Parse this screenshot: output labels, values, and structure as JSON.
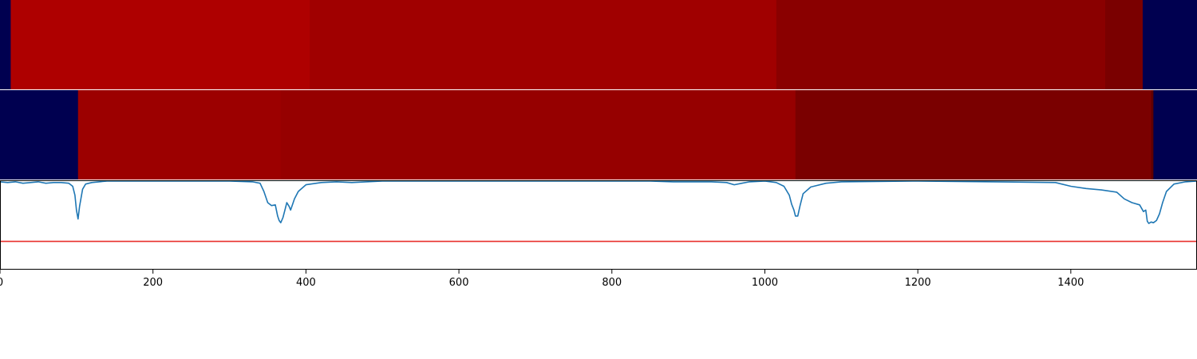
{
  "chart_data": {
    "type": "heatmap",
    "xlim": [
      0,
      1565
    ],
    "x_ticks": [
      0,
      200,
      400,
      600,
      800,
      1000,
      1200,
      1400
    ],
    "x_tick_labels": [
      "0",
      "200",
      "400",
      "600",
      "800",
      "1000",
      "1200",
      "1400"
    ],
    "colors": {
      "background_segment": "#000050",
      "line": "#1f77b4",
      "threshold_line": "#e8302b",
      "axes": "#000000"
    },
    "rows": [
      {
        "segments": [
          {
            "start": 0,
            "end": 14,
            "color": "#000050"
          },
          {
            "start": 14,
            "end": 405,
            "color": "#ae0000"
          },
          {
            "start": 405,
            "end": 1015,
            "color": "#a00000"
          },
          {
            "start": 1015,
            "end": 1445,
            "color": "#8a0000"
          },
          {
            "start": 1445,
            "end": 1494,
            "color": "#7a0000"
          },
          {
            "start": 1494,
            "end": 1565,
            "color": "#000050"
          }
        ]
      },
      {
        "segments": [
          {
            "start": 0,
            "end": 102,
            "color": "#000050"
          },
          {
            "start": 102,
            "end": 367,
            "color": "#9c0000"
          },
          {
            "start": 367,
            "end": 1040,
            "color": "#960000"
          },
          {
            "start": 1040,
            "end": 1505,
            "color": "#7a0000"
          },
          {
            "start": 1505,
            "end": 1508,
            "color": "#600000"
          },
          {
            "start": 1508,
            "end": 1565,
            "color": "#000050"
          }
        ]
      }
    ],
    "line_panel": {
      "ylim": [
        0,
        1.2
      ],
      "threshold": 0.38,
      "series": [
        {
          "x": [
            0,
            10,
            20,
            30,
            40,
            50,
            60,
            70,
            80,
            90,
            95,
            98,
            100,
            102,
            104,
            108,
            112,
            120,
            140,
            180,
            220,
            260,
            300,
            330,
            340,
            345,
            350,
            355,
            360,
            363,
            365,
            367,
            370,
            373,
            375,
            378,
            380,
            385,
            390,
            400,
            420,
            440,
            460,
            500,
            600,
            700,
            800,
            850,
            880,
            900,
            930,
            950,
            960,
            970,
            980,
            1000,
            1015,
            1025,
            1032,
            1035,
            1038,
            1040,
            1043,
            1046,
            1050,
            1060,
            1080,
            1100,
            1200,
            1300,
            1380,
            1400,
            1420,
            1440,
            1460,
            1470,
            1480,
            1490,
            1495,
            1498,
            1500,
            1502,
            1505,
            1508,
            1512,
            1516,
            1520,
            1525,
            1535,
            1550,
            1565
          ],
          "y": [
            1.18,
            1.17,
            1.18,
            1.16,
            1.17,
            1.18,
            1.16,
            1.17,
            1.17,
            1.16,
            1.12,
            1.0,
            0.8,
            0.68,
            0.85,
            1.08,
            1.15,
            1.17,
            1.19,
            1.19,
            1.19,
            1.19,
            1.19,
            1.18,
            1.16,
            1.05,
            0.9,
            0.86,
            0.87,
            0.72,
            0.66,
            0.63,
            0.7,
            0.82,
            0.9,
            0.85,
            0.8,
            0.95,
            1.05,
            1.14,
            1.17,
            1.18,
            1.17,
            1.19,
            1.19,
            1.19,
            1.19,
            1.19,
            1.18,
            1.18,
            1.18,
            1.17,
            1.14,
            1.16,
            1.18,
            1.19,
            1.17,
            1.12,
            1.0,
            0.88,
            0.8,
            0.72,
            0.72,
            0.86,
            1.02,
            1.11,
            1.16,
            1.18,
            1.19,
            1.18,
            1.17,
            1.12,
            1.09,
            1.07,
            1.04,
            0.95,
            0.9,
            0.87,
            0.78,
            0.8,
            0.65,
            0.62,
            0.64,
            0.63,
            0.66,
            0.75,
            0.9,
            1.05,
            1.15,
            1.18,
            1.19
          ]
        }
      ]
    }
  }
}
